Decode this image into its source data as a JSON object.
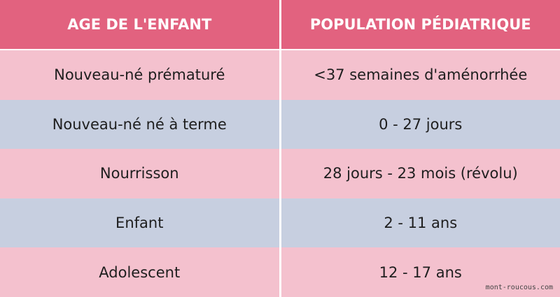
{
  "table": {
    "header": [
      "AGE DE L'ENFANT",
      "POPULATION PÉDIATRIQUE"
    ],
    "rows": [
      [
        "Nouveau-né prématuré",
        "<37 semaines d'aménorrhée"
      ],
      [
        "Nouveau-né né à terme",
        "0 - 27 jours"
      ],
      [
        "Nourrisson",
        "28 jours - 23 mois (révolu)"
      ],
      [
        "Enfant",
        "2 - 11 ans"
      ],
      [
        "Adolescent",
        "12 - 17 ans"
      ]
    ]
  },
  "watermark": "mont-roucous.com"
}
